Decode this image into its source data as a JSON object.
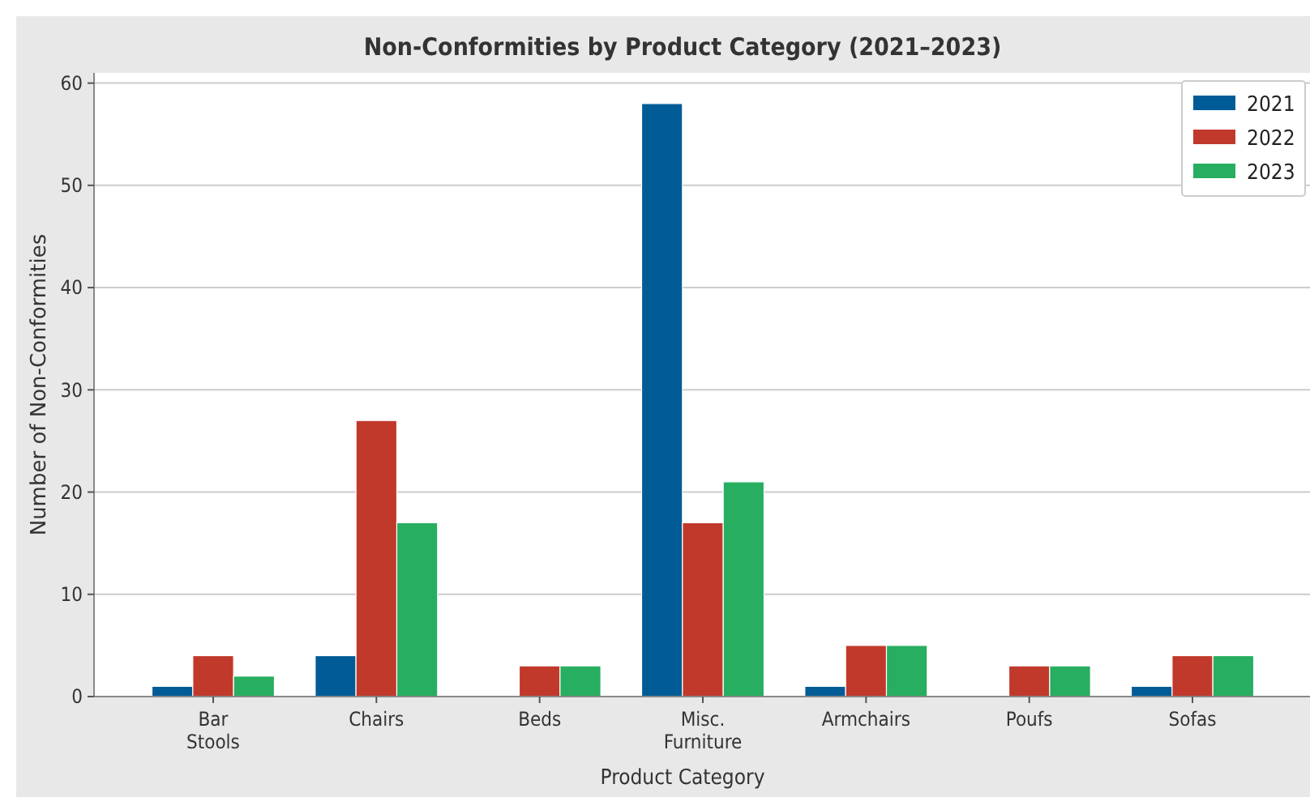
{
  "chart_data": {
    "type": "bar",
    "title": "Non-Conformities by Product Category (2021–2023)",
    "xlabel": "Product Category",
    "ylabel": "Number of Non-Conformities",
    "categories": [
      "Bar\nStools",
      "Chairs",
      "Beds",
      "Misc.\nFurniture",
      "Armchairs",
      "Poufs",
      "Sofas"
    ],
    "series": [
      {
        "name": "2021",
        "color": "#005b96",
        "values": [
          1,
          4,
          0,
          58,
          1,
          0,
          1
        ]
      },
      {
        "name": "2022",
        "color": "#c0392b",
        "values": [
          4,
          27,
          3,
          17,
          5,
          3,
          4
        ]
      },
      {
        "name": "2023",
        "color": "#27ae60",
        "values": [
          2,
          17,
          3,
          21,
          5,
          3,
          4
        ]
      }
    ],
    "ylim": [
      0,
      61
    ],
    "yticks": [
      0,
      10,
      20,
      30,
      40,
      50,
      60
    ],
    "grid": "y",
    "legend": "top right"
  }
}
